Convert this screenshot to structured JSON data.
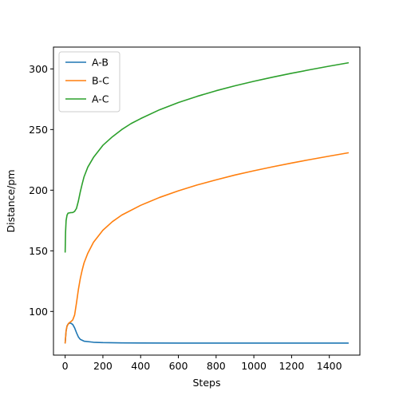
{
  "chart_data": {
    "type": "line",
    "title": "",
    "xlabel": "Steps",
    "ylabel": "Distance/pm",
    "xlim": [
      -62,
      1562
    ],
    "ylim": [
      64,
      318
    ],
    "xticks": [
      0,
      200,
      400,
      600,
      800,
      1000,
      1200,
      1400
    ],
    "yticks": [
      100,
      150,
      200,
      250,
      300
    ],
    "grid": false,
    "legend": {
      "position": "top-left"
    },
    "series": [
      {
        "name": "A-B",
        "color": "#1f77b4",
        "x": [
          0,
          5,
          10,
          15,
          20,
          25,
          30,
          40,
          50,
          60,
          70,
          80,
          100,
          150,
          200,
          300,
          400,
          600,
          800,
          1000,
          1200,
          1400,
          1500
        ],
        "y": [
          74,
          84,
          88,
          89.5,
          90.2,
          90.4,
          90.3,
          89.3,
          86.5,
          82.5,
          79,
          77,
          75.5,
          74.6,
          74.3,
          74.1,
          74.0,
          73.9,
          73.9,
          73.9,
          73.9,
          73.9,
          73.9
        ]
      },
      {
        "name": "B-C",
        "color": "#ff7f0e",
        "x": [
          0,
          5,
          10,
          20,
          30,
          40,
          50,
          60,
          70,
          80,
          90,
          100,
          120,
          150,
          200,
          250,
          300,
          400,
          500,
          600,
          700,
          800,
          900,
          1000,
          1100,
          1200,
          1300,
          1400,
          1500
        ],
        "y": [
          74,
          84,
          88,
          90.5,
          91.5,
          93,
          97,
          107,
          118,
          127,
          134,
          140,
          148,
          157,
          167,
          174,
          179.5,
          187.5,
          194,
          199.5,
          204.3,
          208.5,
          212.5,
          216,
          219.3,
          222.4,
          225.3,
          228.1,
          230.8
        ]
      },
      {
        "name": "A-C",
        "color": "#2ca02c",
        "x": [
          0,
          2,
          5,
          10,
          15,
          20,
          30,
          40,
          50,
          60,
          70,
          80,
          90,
          100,
          120,
          150,
          200,
          250,
          300,
          350,
          400,
          500,
          600,
          700,
          800,
          900,
          1000,
          1100,
          1200,
          1300,
          1400,
          1500
        ],
        "y": [
          149,
          165,
          175,
          179.5,
          181,
          181.2,
          181.5,
          181.6,
          182.5,
          185,
          191,
          198.5,
          205,
          211,
          219,
          227,
          237,
          244,
          250,
          255,
          259,
          266.3,
          272.3,
          277.4,
          282,
          286.1,
          289.8,
          293.2,
          296.4,
          299.4,
          302.3,
          305
        ]
      }
    ]
  }
}
